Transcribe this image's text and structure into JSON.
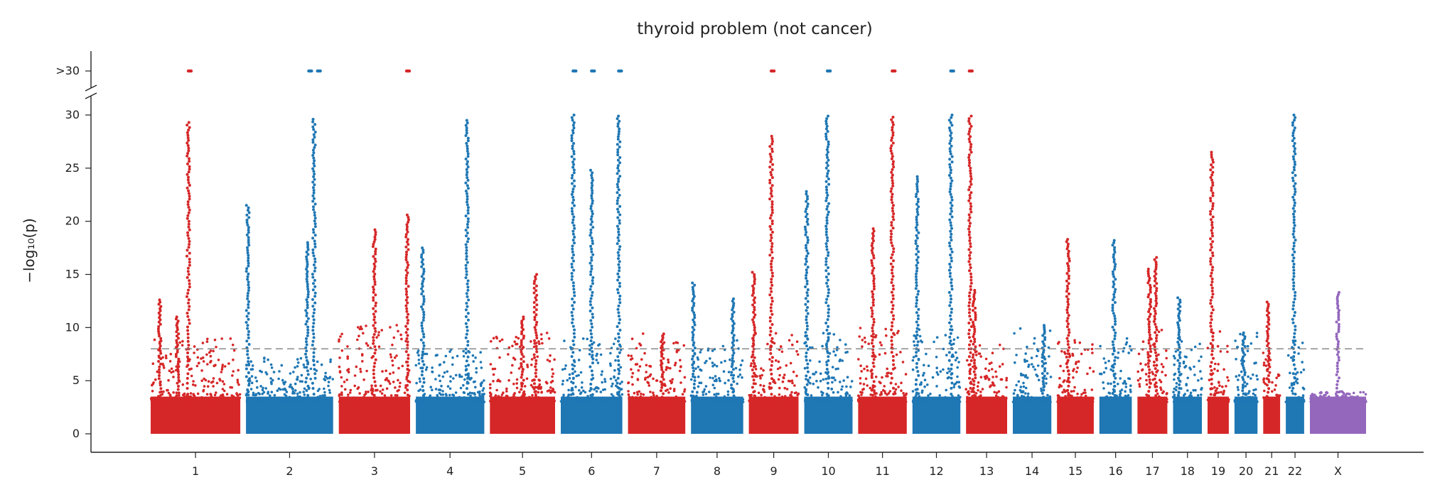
{
  "chart_data": {
    "type": "scatter",
    "subtype": "manhattan",
    "title": "thyroid problem (not cancer)",
    "ylabel": "−log₁₀(p)",
    "xlabel": "",
    "ylim": [
      0,
      30
    ],
    "yticks": [
      0,
      5,
      10,
      15,
      20,
      25,
      30
    ],
    "ytick_labels": [
      "0",
      "5",
      "10",
      "15",
      "20",
      "25",
      "30"
    ],
    "overflow_label": ">30",
    "significance_threshold": 8,
    "grid": false,
    "colors": {
      "odd_chrom": "#d62728",
      "even_chrom": "#1f77b4",
      "chrom_x": "#9467bd",
      "threshold": "#808080"
    },
    "chromosomes": [
      {
        "name": "1",
        "baseline_max": 9,
        "peaks": [
          [
            0.42,
            29.3
          ],
          [
            0.1,
            12.6
          ],
          [
            0.3,
            11
          ]
        ],
        "overflow": [
          0.42
        ]
      },
      {
        "name": "2",
        "baseline_max": 7.5,
        "peaks": [
          [
            0.78,
            29.6
          ],
          [
            0.02,
            21.5
          ],
          [
            0.7,
            18
          ]
        ],
        "overflow": [
          0.72,
          0.82
        ]
      },
      {
        "name": "3",
        "baseline_max": 10.5,
        "peaks": [
          [
            0.5,
            19.2
          ],
          [
            0.96,
            20.6
          ]
        ],
        "overflow": [
          0.95
        ]
      },
      {
        "name": "4",
        "baseline_max": 8,
        "peaks": [
          [
            0.75,
            29.5
          ],
          [
            0.1,
            17.5
          ]
        ],
        "overflow": []
      },
      {
        "name": "5",
        "baseline_max": 9.5,
        "peaks": [
          [
            0.7,
            15
          ],
          [
            0.5,
            11
          ]
        ],
        "overflow": []
      },
      {
        "name": "6",
        "baseline_max": 9,
        "peaks": [
          [
            0.2,
            30
          ],
          [
            0.5,
            24.8
          ],
          [
            0.94,
            29.9
          ]
        ],
        "overflow": [
          0.2,
          0.5,
          0.94
        ]
      },
      {
        "name": "7",
        "baseline_max": 9.5,
        "peaks": [
          [
            0.6,
            9.4
          ]
        ],
        "overflow": []
      },
      {
        "name": "8",
        "baseline_max": 8.8,
        "peaks": [
          [
            0.05,
            14.2
          ],
          [
            0.8,
            12.7
          ]
        ],
        "overflow": []
      },
      {
        "name": "9",
        "baseline_max": 9.5,
        "peaks": [
          [
            0.45,
            28
          ],
          [
            0.1,
            15.2
          ]
        ],
        "overflow": [
          0.45
        ]
      },
      {
        "name": "10",
        "baseline_max": 9.5,
        "peaks": [
          [
            0.48,
            29.9
          ],
          [
            0.05,
            22.8
          ]
        ],
        "overflow": [
          0.48
        ]
      },
      {
        "name": "11",
        "baseline_max": 10,
        "peaks": [
          [
            0.7,
            29.8
          ],
          [
            0.3,
            19.3
          ]
        ],
        "overflow": [
          0.7
        ]
      },
      {
        "name": "12",
        "baseline_max": 10,
        "peaks": [
          [
            0.8,
            30
          ],
          [
            0.1,
            24.2
          ]
        ],
        "overflow": [
          0.8
        ]
      },
      {
        "name": "13",
        "baseline_max": 8.5,
        "peaks": [
          [
            0.1,
            29.9
          ],
          [
            0.2,
            13.5
          ]
        ],
        "overflow": [
          0.08
        ]
      },
      {
        "name": "14",
        "baseline_max": 10,
        "peaks": [
          [
            0.8,
            10.2
          ]
        ],
        "overflow": []
      },
      {
        "name": "15",
        "baseline_max": 9,
        "peaks": [
          [
            0.3,
            18.3
          ]
        ],
        "overflow": []
      },
      {
        "name": "16",
        "baseline_max": 9,
        "peaks": [
          [
            0.45,
            18.2
          ]
        ],
        "overflow": []
      },
      {
        "name": "17",
        "baseline_max": 10,
        "peaks": [
          [
            0.6,
            16.6
          ],
          [
            0.4,
            15.5
          ]
        ],
        "overflow": []
      },
      {
        "name": "18",
        "baseline_max": 9,
        "peaks": [
          [
            0.2,
            12.8
          ]
        ],
        "overflow": []
      },
      {
        "name": "19",
        "baseline_max": 10,
        "peaks": [
          [
            0.2,
            26.5
          ]
        ],
        "overflow": []
      },
      {
        "name": "20",
        "baseline_max": 9.5,
        "peaks": [
          [
            0.4,
            9.5
          ]
        ],
        "overflow": []
      },
      {
        "name": "21",
        "baseline_max": 8,
        "peaks": [
          [
            0.3,
            12.4
          ]
        ],
        "overflow": []
      },
      {
        "name": "22",
        "baseline_max": 9,
        "peaks": [
          [
            0.45,
            30
          ]
        ],
        "overflow": []
      },
      {
        "name": "X",
        "baseline_max": 4,
        "peaks": [
          [
            0.5,
            13.3
          ]
        ],
        "overflow": []
      }
    ]
  }
}
